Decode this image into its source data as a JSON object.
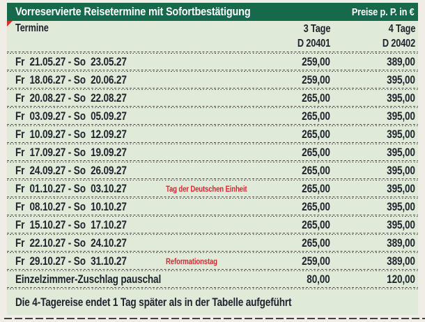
{
  "title_bar": {
    "title": "Vorreservierte Reisetermine mit Sofortbestätigung",
    "price_label": "Preise p. P. in €"
  },
  "column_header": {
    "termine": "Termine",
    "columns": [
      {
        "duration": "3 Tage",
        "code": "D 20401"
      },
      {
        "duration": "4 Tage",
        "code": "D 20402"
      }
    ]
  },
  "rows": [
    {
      "date": "Fr  21.05.27 - So  23.05.27",
      "note": "",
      "price_3_tage": "259,00",
      "price_4_tage": "389,00"
    },
    {
      "date": "Fr  18.06.27 - So  20.06.27",
      "note": "",
      "price_3_tage": "259,00",
      "price_4_tage": "395,00"
    },
    {
      "date": "Fr  20.08.27 - So  22.08.27",
      "note": "",
      "price_3_tage": "265,00",
      "price_4_tage": "395,00"
    },
    {
      "date": "Fr  03.09.27 - So  05.09.27",
      "note": "",
      "price_3_tage": "265,00",
      "price_4_tage": "395,00"
    },
    {
      "date": "Fr  10.09.27 - So  12.09.27",
      "note": "",
      "price_3_tage": "265,00",
      "price_4_tage": "395,00"
    },
    {
      "date": "Fr  17.09.27 - So  19.09.27",
      "note": "",
      "price_3_tage": "265,00",
      "price_4_tage": "395,00"
    },
    {
      "date": "Fr  24.09.27 - So  26.09.27",
      "note": "",
      "price_3_tage": "265,00",
      "price_4_tage": "395,00"
    },
    {
      "date": "Fr  01.10.27 - So  03.10.27",
      "note": "Tag der Deutschen Einheit",
      "price_3_tage": "265,00",
      "price_4_tage": "395,00"
    },
    {
      "date": "Fr  08.10.27 - So  10.10.27",
      "note": "",
      "price_3_tage": "265,00",
      "price_4_tage": "395,00"
    },
    {
      "date": "Fr  15.10.27 - So  17.10.27",
      "note": "",
      "price_3_tage": "265,00",
      "price_4_tage": "395,00"
    },
    {
      "date": "Fr  22.10.27 - So  24.10.27",
      "note": "",
      "price_3_tage": "265,00",
      "price_4_tage": "389,00"
    },
    {
      "date": "Fr  29.10.27 - So  31.10.27",
      "note": "Reformationstag",
      "price_3_tage": "259,00",
      "price_4_tage": "389,00"
    }
  ],
  "surcharge_row": {
    "label": "Einzelzimmer-Zuschlag pauschal",
    "price_3_tage": "80,00",
    "price_4_tage": "120,00"
  },
  "footer_note": "Die 4-Tagereise endet 1 Tag später als in der Tabelle aufgeführt",
  "colors": {
    "header_green": "#16694a",
    "table_bg": "#dfead9",
    "holiday_red": "#e42531",
    "text": "#20242e",
    "page_bg": "#f0ede7"
  }
}
